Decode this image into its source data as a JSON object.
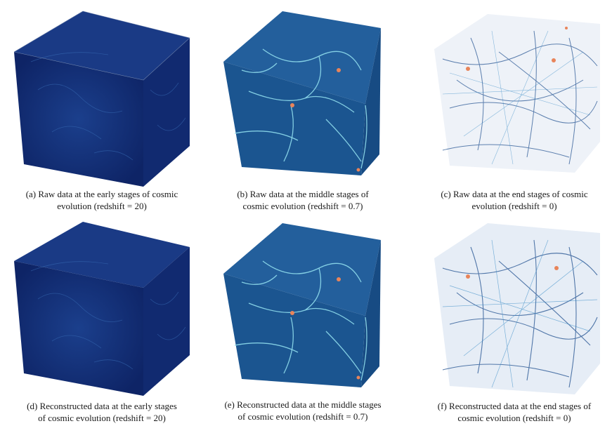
{
  "figure": {
    "panels": [
      {
        "id": "a",
        "stage": "early",
        "kind": "raw",
        "caption": [
          "(a) Raw data at the early stages of cosmic",
          "evolution (redshift = 20)"
        ]
      },
      {
        "id": "b",
        "stage": "middle",
        "kind": "raw",
        "caption": [
          "(b) Raw data at the middle stages of",
          "cosmic evolution (redshift = 0.7)"
        ]
      },
      {
        "id": "c",
        "stage": "end",
        "kind": "raw",
        "caption": [
          "(c) Raw data at the end stages of cosmic",
          "evolution (redshift = 0)"
        ]
      },
      {
        "id": "d",
        "stage": "early",
        "kind": "reconstructed",
        "caption": [
          "(d) Reconstructed data at the early stages",
          "of cosmic evolution (redshift = 20)"
        ]
      },
      {
        "id": "e",
        "stage": "middle",
        "kind": "reconstructed",
        "caption": [
          "(e) Reconstructed data at the middle stages",
          "of cosmic evolution (redshift = 0.7)"
        ]
      },
      {
        "id": "f",
        "stage": "end",
        "kind": "reconstructed",
        "caption": [
          "(f) Reconstructed data at the end stages of",
          "cosmic evolution (redshift = 0)"
        ]
      }
    ],
    "colors": {
      "early_face": "#14307a",
      "middle_face": "#1b5a97",
      "filament": "#7fd6e6",
      "end_face": "#f2f5fa",
      "end_filament": "#1f4f8f",
      "halo": "#e8845a"
    }
  }
}
